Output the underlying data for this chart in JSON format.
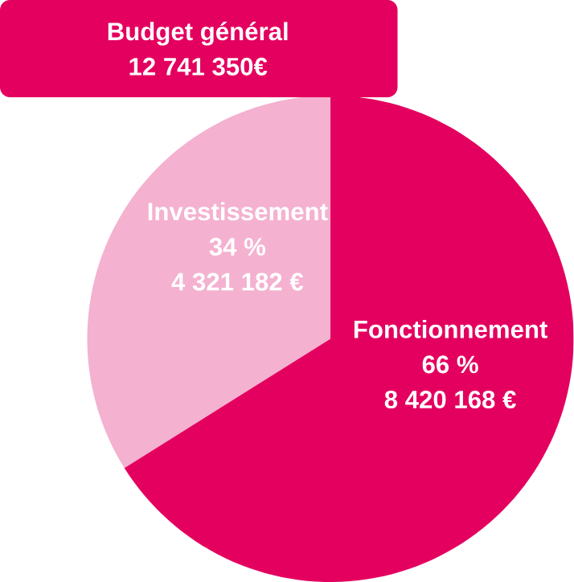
{
  "chart_data": {
    "type": "pie",
    "title": "Budget général",
    "subtitle": "12 741 350€",
    "categories": [
      "Investissement",
      "Fonctionnement"
    ],
    "values": [
      4321182,
      8420168
    ],
    "value_labels": [
      "4 321 182 €",
      "8 420 168 €"
    ],
    "annotations": [
      "34 %",
      "66 %"
    ],
    "colors": [
      "#f4b1d0",
      "#e4005f"
    ]
  }
}
